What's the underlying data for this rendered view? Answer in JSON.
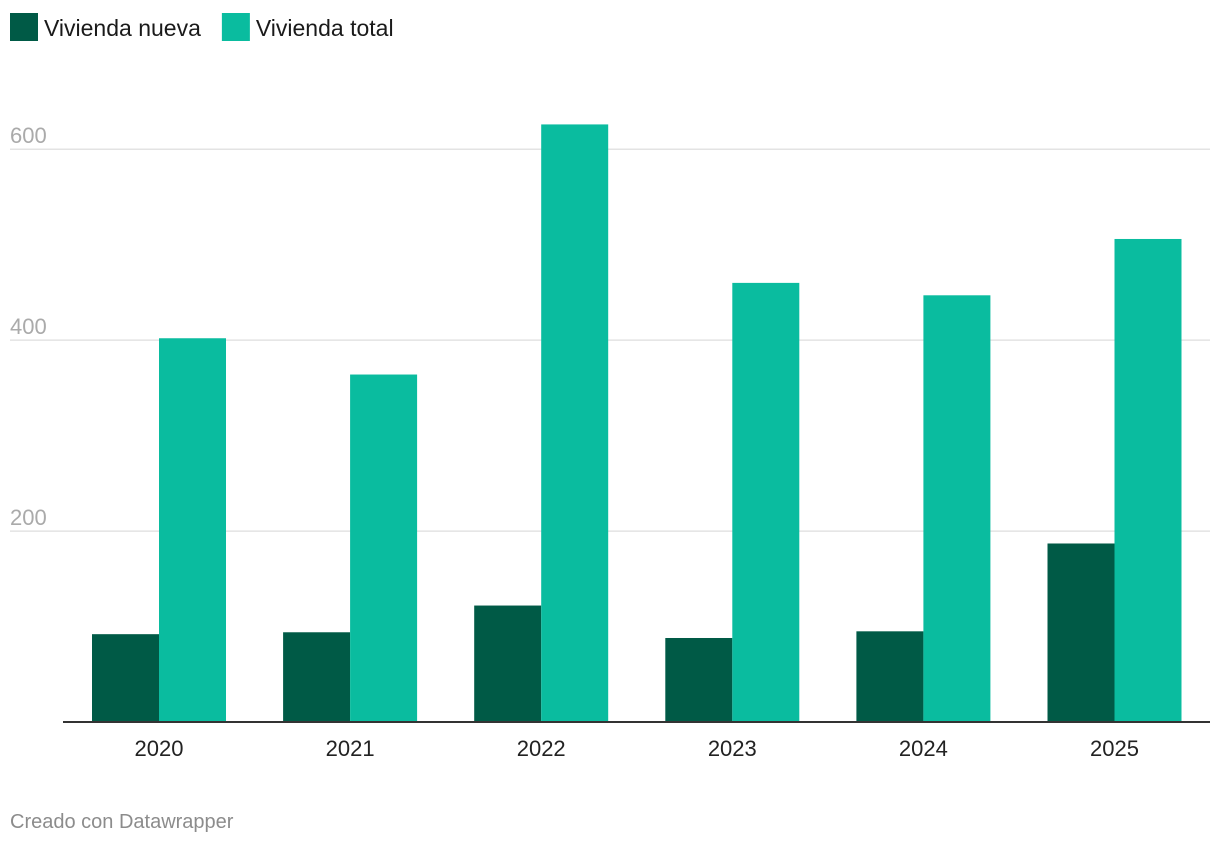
{
  "chart_data": {
    "type": "bar",
    "categories": [
      "2020",
      "2021",
      "2022",
      "2023",
      "2024",
      "2025"
    ],
    "series": [
      {
        "name": "Vivienda nueva",
        "color": "#005a46",
        "values": [
          92,
          94,
          122,
          88,
          95,
          187
        ]
      },
      {
        "name": "Vivienda total",
        "color": "#0abc9f",
        "values": [
          402,
          364,
          626,
          460,
          447,
          506
        ]
      }
    ],
    "yticks": [
      200,
      400,
      600
    ],
    "ylim": [
      0,
      640
    ],
    "grid": true,
    "legend_position": "top-left"
  },
  "footer": {
    "credit": "Creado con Datawrapper"
  }
}
